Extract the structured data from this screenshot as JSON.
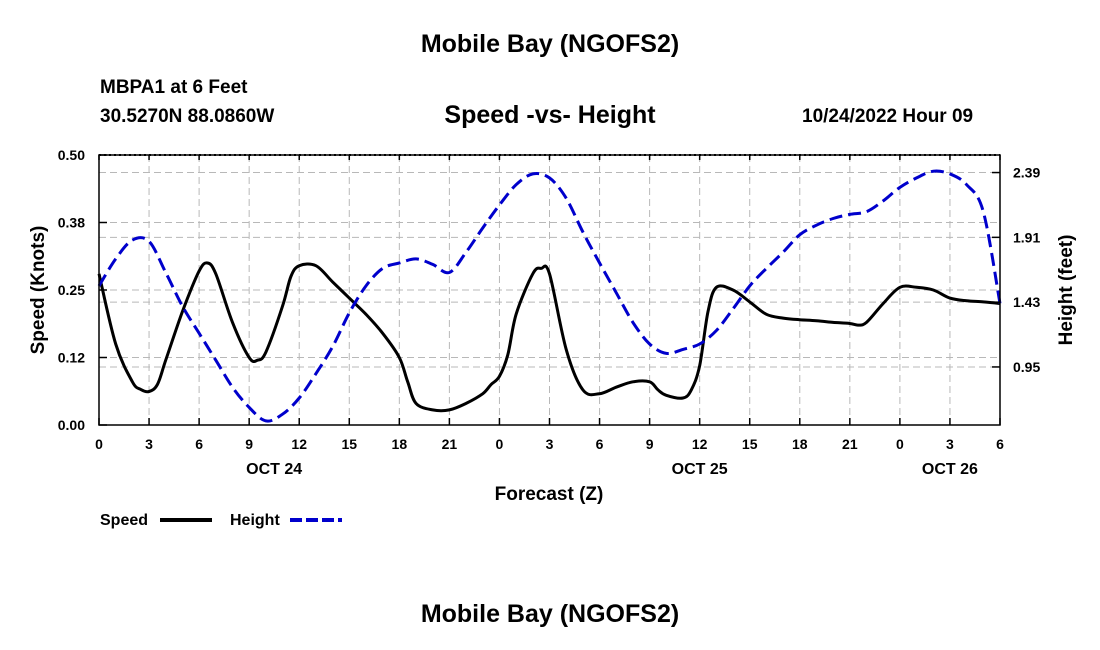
{
  "header": {
    "title": "Mobile Bay (NGOFS2)",
    "station": "MBPA1 at 6 Feet",
    "coords": "30.5270N  88.0860W",
    "subtitle": "Speed -vs- Height",
    "run_time": "10/24/2022 Hour 09"
  },
  "footer": {
    "title": "Mobile Bay (NGOFS2)"
  },
  "chart_data": {
    "type": "line",
    "xlabel": "Forecast (Z)",
    "ylabel_left": "Speed (Knots)",
    "ylabel_right": "Height (feet)",
    "x_range_hours": [
      0,
      54
    ],
    "x_tick_labels": [
      "0",
      "3",
      "6",
      "9",
      "12",
      "15",
      "18",
      "21",
      "0",
      "3",
      "6",
      "9",
      "12",
      "15",
      "18",
      "21",
      "0",
      "3",
      "6"
    ],
    "date_labels": [
      {
        "label": "OCT 24",
        "hour": 10.5
      },
      {
        "label": "OCT 25",
        "hour": 36
      },
      {
        "label": "OCT 26",
        "hour": 51
      }
    ],
    "left_axis": {
      "range": [
        0,
        0.5
      ],
      "ticks": [
        0.0,
        0.125,
        0.25,
        0.375,
        0.5
      ],
      "tick_labels": [
        "0.00",
        "0.12",
        "0.25",
        "0.38",
        "0.50"
      ]
    },
    "right_axis": {
      "range": [
        0.52,
        2.52
      ],
      "ticks": [
        0.95,
        1.43,
        1.91,
        2.39
      ],
      "tick_labels": [
        "0.95",
        "1.43",
        "1.91",
        "2.39"
      ]
    },
    "grid": true,
    "legend_position": "bottom-left",
    "series": [
      {
        "name": "Speed",
        "axis": "left",
        "color": "#000000",
        "dash": "solid",
        "x": [
          0,
          1,
          2,
          2.5,
          3,
          3.5,
          4,
          5,
          6,
          6.5,
          7,
          8,
          9,
          9.5,
          10,
          11,
          11.5,
          12,
          13,
          14,
          15,
          16,
          17,
          18,
          18.5,
          19,
          20,
          21,
          22,
          23,
          23.5,
          24,
          24.5,
          25,
          26,
          26.5,
          27,
          28,
          29,
          30,
          31,
          32,
          33,
          33.5,
          34,
          35,
          35.5,
          36,
          36.5,
          37,
          38,
          39,
          40,
          41,
          42,
          43,
          44,
          45,
          45.5,
          46,
          47,
          48,
          49,
          50,
          51,
          52,
          53,
          54
        ],
        "y": [
          0.28,
          0.15,
          0.08,
          0.066,
          0.062,
          0.075,
          0.12,
          0.21,
          0.285,
          0.3,
          0.28,
          0.19,
          0.125,
          0.12,
          0.135,
          0.22,
          0.275,
          0.295,
          0.295,
          0.265,
          0.235,
          0.205,
          0.17,
          0.125,
          0.08,
          0.04,
          0.028,
          0.028,
          0.04,
          0.058,
          0.075,
          0.09,
          0.13,
          0.205,
          0.28,
          0.29,
          0.28,
          0.14,
          0.065,
          0.058,
          0.07,
          0.08,
          0.08,
          0.065,
          0.055,
          0.05,
          0.065,
          0.11,
          0.21,
          0.255,
          0.25,
          0.228,
          0.205,
          0.198,
          0.195,
          0.193,
          0.19,
          0.188,
          0.185,
          0.19,
          0.225,
          0.255,
          0.255,
          0.25,
          0.235,
          0.23,
          0.228,
          0.225
        ]
      },
      {
        "name": "Height",
        "axis": "right",
        "color": "#0000cc",
        "dash": "dashed",
        "x": [
          0,
          1,
          2,
          3,
          4,
          5,
          6,
          7,
          8,
          9,
          10,
          11,
          12,
          13,
          14,
          15,
          16,
          17,
          18,
          19,
          20,
          21,
          22,
          23,
          24,
          25,
          26,
          27,
          28,
          29,
          30,
          31,
          32,
          33,
          34,
          35,
          36,
          37,
          38,
          39,
          40,
          41,
          42,
          43,
          44,
          45,
          46,
          47,
          48,
          49,
          50,
          51,
          52,
          53,
          54
        ],
        "y": [
          1.55,
          1.75,
          1.89,
          1.88,
          1.65,
          1.4,
          1.2,
          1.0,
          0.8,
          0.65,
          0.55,
          0.6,
          0.72,
          0.9,
          1.1,
          1.35,
          1.55,
          1.68,
          1.72,
          1.75,
          1.71,
          1.65,
          1.8,
          1.98,
          2.15,
          2.3,
          2.38,
          2.35,
          2.2,
          1.95,
          1.72,
          1.5,
          1.28,
          1.12,
          1.05,
          1.08,
          1.12,
          1.22,
          1.38,
          1.55,
          1.68,
          1.8,
          1.93,
          2.0,
          2.05,
          2.08,
          2.1,
          2.18,
          2.28,
          2.35,
          2.4,
          2.38,
          2.3,
          2.1,
          1.42
        ]
      }
    ]
  }
}
